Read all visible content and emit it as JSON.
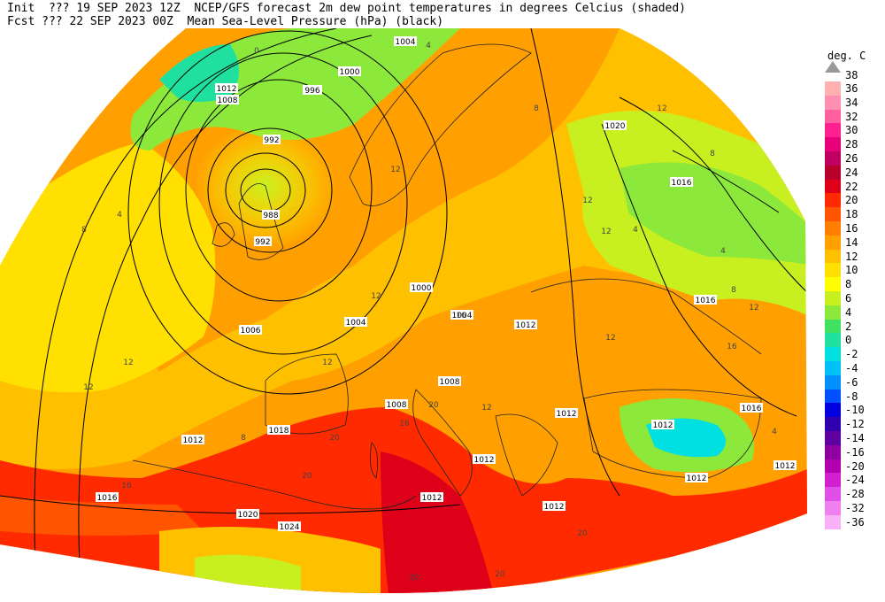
{
  "header": {
    "line1": "Init  ??? 19 SEP 2023 12Z  NCEP/GFS forecast 2m dew point temperatures in degrees Celcius (shaded)",
    "line2": "Fcst ??? 22 SEP 2023 00Z  Mean Sea-Level Pressure (hPa) (black)"
  },
  "legend": {
    "unit": "deg. C",
    "top_value": "38",
    "entries": [
      {
        "label": "36",
        "color": "#ffb0b0"
      },
      {
        "label": "34",
        "color": "#ff8fb0"
      },
      {
        "label": "32",
        "color": "#ff60a0"
      },
      {
        "label": "30",
        "color": "#ff2090"
      },
      {
        "label": "28",
        "color": "#e8007a"
      },
      {
        "label": "26",
        "color": "#c00060"
      },
      {
        "label": "24",
        "color": "#b8002a"
      },
      {
        "label": "22",
        "color": "#dd0018"
      },
      {
        "label": "20",
        "color": "#ff2a00"
      },
      {
        "label": "18",
        "color": "#ff5500"
      },
      {
        "label": "16",
        "color": "#ff8000"
      },
      {
        "label": "14",
        "color": "#ffa000"
      },
      {
        "label": "12",
        "color": "#ffc000"
      },
      {
        "label": "10",
        "color": "#ffe000"
      },
      {
        "label": "8",
        "color": "#ffff00"
      },
      {
        "label": "6",
        "color": "#c8f020"
      },
      {
        "label": "4",
        "color": "#8ce83a"
      },
      {
        "label": "2",
        "color": "#40e060"
      },
      {
        "label": "0",
        "color": "#20e0a0"
      },
      {
        "label": "-2",
        "color": "#00e0e0"
      },
      {
        "label": "-4",
        "color": "#00c0f8"
      },
      {
        "label": "-6",
        "color": "#0090ff"
      },
      {
        "label": "-8",
        "color": "#0050ff"
      },
      {
        "label": "-10",
        "color": "#0000e0"
      },
      {
        "label": "-12",
        "color": "#3000b0"
      },
      {
        "label": "-14",
        "color": "#6000a0"
      },
      {
        "label": "-16",
        "color": "#9000a0"
      },
      {
        "label": "-20",
        "color": "#b000b0"
      },
      {
        "label": "-24",
        "color": "#d020d0"
      },
      {
        "label": "-28",
        "color": "#e050e8"
      },
      {
        "label": "-32",
        "color": "#f080f0"
      },
      {
        "label": "-36",
        "color": "#f8b0f8"
      }
    ]
  },
  "pressure_labels": [
    "1004",
    "1000",
    "996",
    "1012",
    "1008",
    "992",
    "988",
    "992",
    "1000",
    "1004",
    "1004",
    "1012",
    "1006",
    "1008",
    "1008",
    "1012",
    "1018",
    "1012",
    "1012",
    "1012",
    "1016",
    "1012",
    "1020",
    "1024",
    "1020",
    "1016",
    "1016",
    "1016",
    "1012",
    "1012",
    "1012"
  ],
  "dewpoint_labels": [
    "0",
    "4",
    "8",
    "12",
    "12",
    "8",
    "12",
    "12",
    "16",
    "16",
    "20",
    "20",
    "20",
    "20",
    "4",
    "8",
    "12",
    "12",
    "16",
    "20",
    "20",
    "12",
    "12",
    "8",
    "4",
    "12",
    "12",
    "8",
    "16",
    "12",
    "4",
    "4"
  ]
}
